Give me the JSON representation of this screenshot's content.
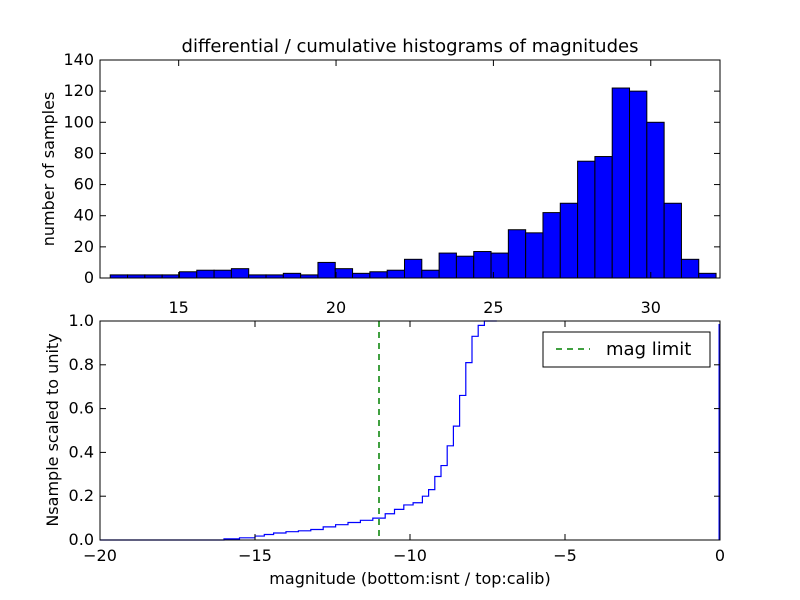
{
  "figure": {
    "background": "#ffffff"
  },
  "chart_data": [
    {
      "type": "bar",
      "title": "differential / cumulative histograms of magnitudes",
      "xlabel": "",
      "ylabel": "number of samples",
      "xlim": [
        12.5,
        32.2
      ],
      "ylim": [
        0,
        140
      ],
      "xticks": [
        15,
        20,
        25,
        30
      ],
      "yticks": [
        0,
        20,
        40,
        60,
        80,
        100,
        120,
        140
      ],
      "bar_color": "#0000ff",
      "edge_color": "#000000",
      "bin_width": 0.55,
      "bins": [
        {
          "x": 13.1,
          "value": 2
        },
        {
          "x": 13.65,
          "value": 2
        },
        {
          "x": 14.2,
          "value": 2
        },
        {
          "x": 14.75,
          "value": 2
        },
        {
          "x": 15.3,
          "value": 4
        },
        {
          "x": 15.85,
          "value": 5
        },
        {
          "x": 16.4,
          "value": 5
        },
        {
          "x": 16.95,
          "value": 6
        },
        {
          "x": 17.5,
          "value": 2
        },
        {
          "x": 18.05,
          "value": 2
        },
        {
          "x": 18.6,
          "value": 3
        },
        {
          "x": 19.15,
          "value": 2
        },
        {
          "x": 19.7,
          "value": 10
        },
        {
          "x": 20.25,
          "value": 6
        },
        {
          "x": 20.8,
          "value": 3
        },
        {
          "x": 21.35,
          "value": 4
        },
        {
          "x": 21.9,
          "value": 5
        },
        {
          "x": 22.45,
          "value": 12
        },
        {
          "x": 23.0,
          "value": 5
        },
        {
          "x": 23.55,
          "value": 16
        },
        {
          "x": 24.1,
          "value": 14
        },
        {
          "x": 24.65,
          "value": 17
        },
        {
          "x": 25.2,
          "value": 16
        },
        {
          "x": 25.75,
          "value": 31
        },
        {
          "x": 26.3,
          "value": 29
        },
        {
          "x": 26.85,
          "value": 42
        },
        {
          "x": 27.4,
          "value": 48
        },
        {
          "x": 27.95,
          "value": 75
        },
        {
          "x": 28.5,
          "value": 78
        },
        {
          "x": 29.05,
          "value": 122
        },
        {
          "x": 29.6,
          "value": 120
        },
        {
          "x": 30.15,
          "value": 100
        },
        {
          "x": 30.7,
          "value": 48
        },
        {
          "x": 31.25,
          "value": 12
        },
        {
          "x": 31.8,
          "value": 3
        }
      ]
    },
    {
      "type": "line",
      "step": true,
      "title": "",
      "xlabel": "magnitude (bottom:isnt / top:calib)",
      "ylabel": "Nsample scaled to unity",
      "xlim": [
        -20,
        0
      ],
      "ylim": [
        0,
        1.0
      ],
      "xticks": [
        -20,
        -15,
        -10,
        -5,
        0
      ],
      "yticks": [
        0.0,
        0.2,
        0.4,
        0.6,
        0.8,
        1.0
      ],
      "xtick_labels": [
        "−20",
        "−15",
        "−10",
        "−5",
        "0"
      ],
      "ytick_labels": [
        "0.0",
        "0.2",
        "0.4",
        "0.6",
        "0.8",
        "1.0"
      ],
      "series": [
        {
          "color": "#0000ff",
          "x": [
            -20,
            -16.0,
            -15.5,
            -15.0,
            -14.7,
            -14.4,
            -14.0,
            -13.6,
            -13.2,
            -12.8,
            -12.4,
            -12.0,
            -11.6,
            -11.2,
            -10.8,
            -10.5,
            -10.2,
            -9.9,
            -9.6,
            -9.4,
            -9.2,
            -9.0,
            -8.8,
            -8.6,
            -8.4,
            -8.2,
            -8.0,
            -7.8,
            -7.6,
            -7.4,
            -7.2
          ],
          "y": [
            0.0,
            0.005,
            0.01,
            0.018,
            0.025,
            0.032,
            0.038,
            0.042,
            0.048,
            0.06,
            0.07,
            0.08,
            0.09,
            0.1,
            0.12,
            0.14,
            0.16,
            0.17,
            0.2,
            0.23,
            0.29,
            0.34,
            0.43,
            0.52,
            0.66,
            0.81,
            0.93,
            0.98,
            1.0,
            1.0,
            1.0
          ]
        }
      ],
      "reference_lines": [
        {
          "x": -11.0,
          "color": "#008000",
          "style": "dashed",
          "label": "mag limit"
        }
      ],
      "legend": {
        "position": "top-right",
        "entries": [
          "mag limit"
        ]
      }
    }
  ]
}
